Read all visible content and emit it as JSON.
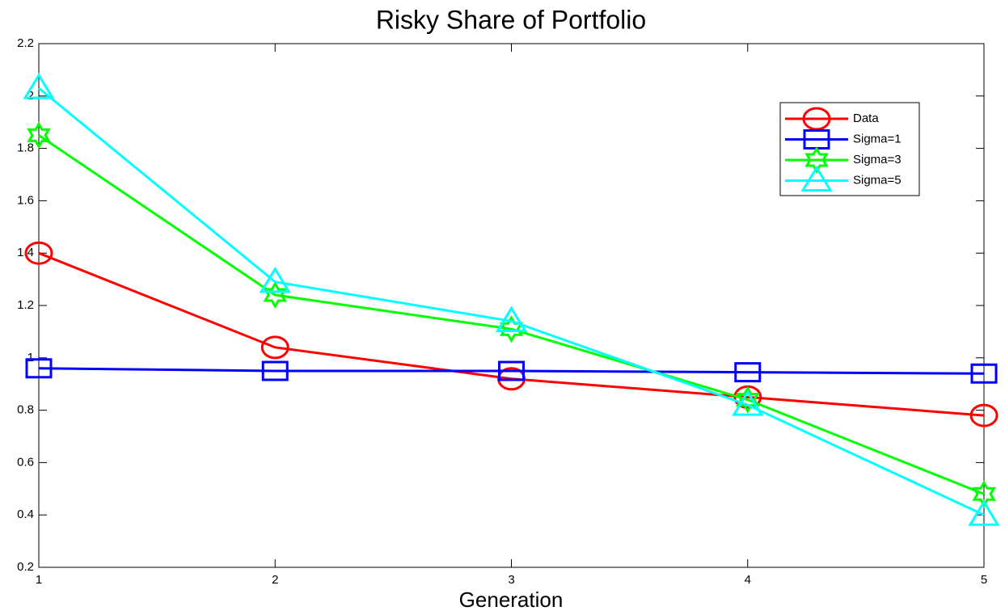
{
  "chart_data": {
    "type": "line",
    "title": "Risky Share of Portfolio",
    "x_label": "Generation",
    "x": [
      1,
      2,
      3,
      4,
      5
    ],
    "series": [
      {
        "name": "Data",
        "color": "#ff0000",
        "marker": "circle",
        "values": [
          1.4,
          1.04,
          0.92,
          0.85,
          0.78
        ]
      },
      {
        "name": "Sigma=1",
        "color": "#0000ff",
        "marker": "square",
        "values": [
          0.96,
          0.95,
          0.95,
          0.945,
          0.94
        ]
      },
      {
        "name": "Sigma=3",
        "color": "#00ff00",
        "marker": "hexagram",
        "values": [
          1.85,
          1.24,
          1.11,
          0.84,
          0.48
        ]
      },
      {
        "name": "Sigma=5",
        "color": "#00ffff",
        "marker": "triangle",
        "values": [
          2.03,
          1.29,
          1.14,
          0.82,
          0.4
        ]
      }
    ],
    "xlim": [
      1,
      5
    ],
    "xticks": [
      1,
      2,
      3,
      4,
      5
    ],
    "ylim": [
      0.2,
      2.2
    ],
    "yticks": [
      0.2,
      0.4,
      0.6,
      0.8,
      1,
      1.2,
      1.4,
      1.6,
      1.8,
      2,
      2.2
    ],
    "grid": false,
    "legend": "upper right"
  }
}
